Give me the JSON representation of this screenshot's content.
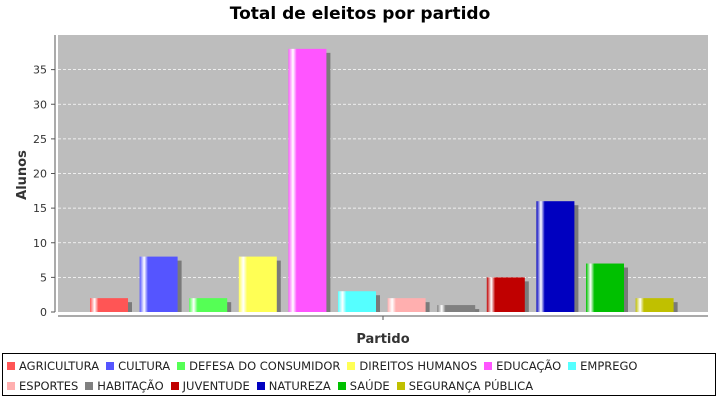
{
  "chart_data": {
    "type": "bar",
    "title": "Total de eleitos por partido",
    "xlabel": "Partido",
    "ylabel": "Alunos",
    "ylim": [
      0,
      40
    ],
    "yticks": [
      0,
      5,
      10,
      15,
      20,
      25,
      30,
      35
    ],
    "grid": true,
    "legend_position": "bottom",
    "series": [
      {
        "name": "AGRICULTURA",
        "value": 2,
        "color": "#ff5555"
      },
      {
        "name": "CULTURA",
        "value": 8,
        "color": "#5555ff"
      },
      {
        "name": "DEFESA DO CONSUMIDOR",
        "value": 2,
        "color": "#55ff55"
      },
      {
        "name": "DIREITOS HUMANOS",
        "value": 8,
        "color": "#ffff55"
      },
      {
        "name": "EDUCAÇÃO",
        "value": 38,
        "color": "#ff55ff"
      },
      {
        "name": "EMPREGO",
        "value": 3,
        "color": "#55ffff"
      },
      {
        "name": "ESPORTES",
        "value": 2,
        "color": "#ffafaf"
      },
      {
        "name": "HABITAÇÃO",
        "value": 1,
        "color": "#808080"
      },
      {
        "name": "JUVENTUDE",
        "value": 5,
        "color": "#c00000"
      },
      {
        "name": "NATUREZA",
        "value": 16,
        "color": "#0000c0"
      },
      {
        "name": "SAÚDE",
        "value": 7,
        "color": "#00c000"
      },
      {
        "name": "SEGURANÇA PÚBLICA",
        "value": 2,
        "color": "#c0c000"
      }
    ]
  }
}
